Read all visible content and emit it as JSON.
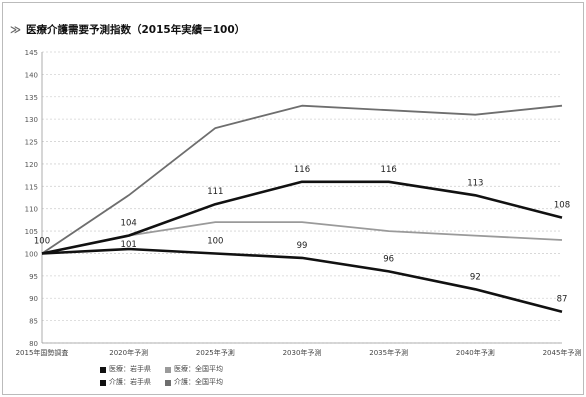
{
  "chart_data": {
    "type": "line",
    "title": "医療介護需要予測指数（2015年実績＝100）",
    "title_marker": "≫",
    "categories": [
      "2015年国勢調査",
      "2020年予測",
      "2025年予測",
      "2030年予測",
      "2035年予測",
      "2040年予測",
      "2045年予測"
    ],
    "ylim": [
      80,
      145
    ],
    "yticks": [
      80,
      85,
      90,
      95,
      100,
      105,
      110,
      115,
      120,
      125,
      130,
      135,
      140,
      145
    ],
    "grid": true,
    "legend_position": "bottom",
    "series": [
      {
        "name": "医療：岩手県",
        "values": [
          100,
          101,
          100,
          99,
          96,
          92,
          87
        ],
        "color": "#111111",
        "width": 2.6,
        "labels": [
          null,
          null,
          "100",
          "99",
          "96",
          "92",
          "87"
        ]
      },
      {
        "name": "医療：全国平均",
        "values": [
          100,
          104,
          107,
          107,
          105,
          104,
          103
        ],
        "color": "#9a9a9a",
        "width": 1.8,
        "labels": [
          null,
          null,
          null,
          null,
          null,
          null,
          null
        ]
      },
      {
        "name": "介護：岩手県",
        "values": [
          100,
          104,
          111,
          116,
          116,
          113,
          108
        ],
        "color": "#111111",
        "width": 2.6,
        "labels": [
          "100",
          "104",
          "111",
          "116",
          "116",
          "113",
          "108"
        ]
      },
      {
        "name": "介護：全国平均",
        "values": [
          100,
          113,
          128,
          133,
          132,
          131,
          133
        ],
        "color": "#6e6e6e",
        "width": 1.8,
        "labels": [
          null,
          null,
          null,
          null,
          null,
          null,
          null
        ]
      }
    ],
    "extra_labels": [
      {
        "text": "101",
        "series": 0,
        "index": 1
      }
    ]
  }
}
